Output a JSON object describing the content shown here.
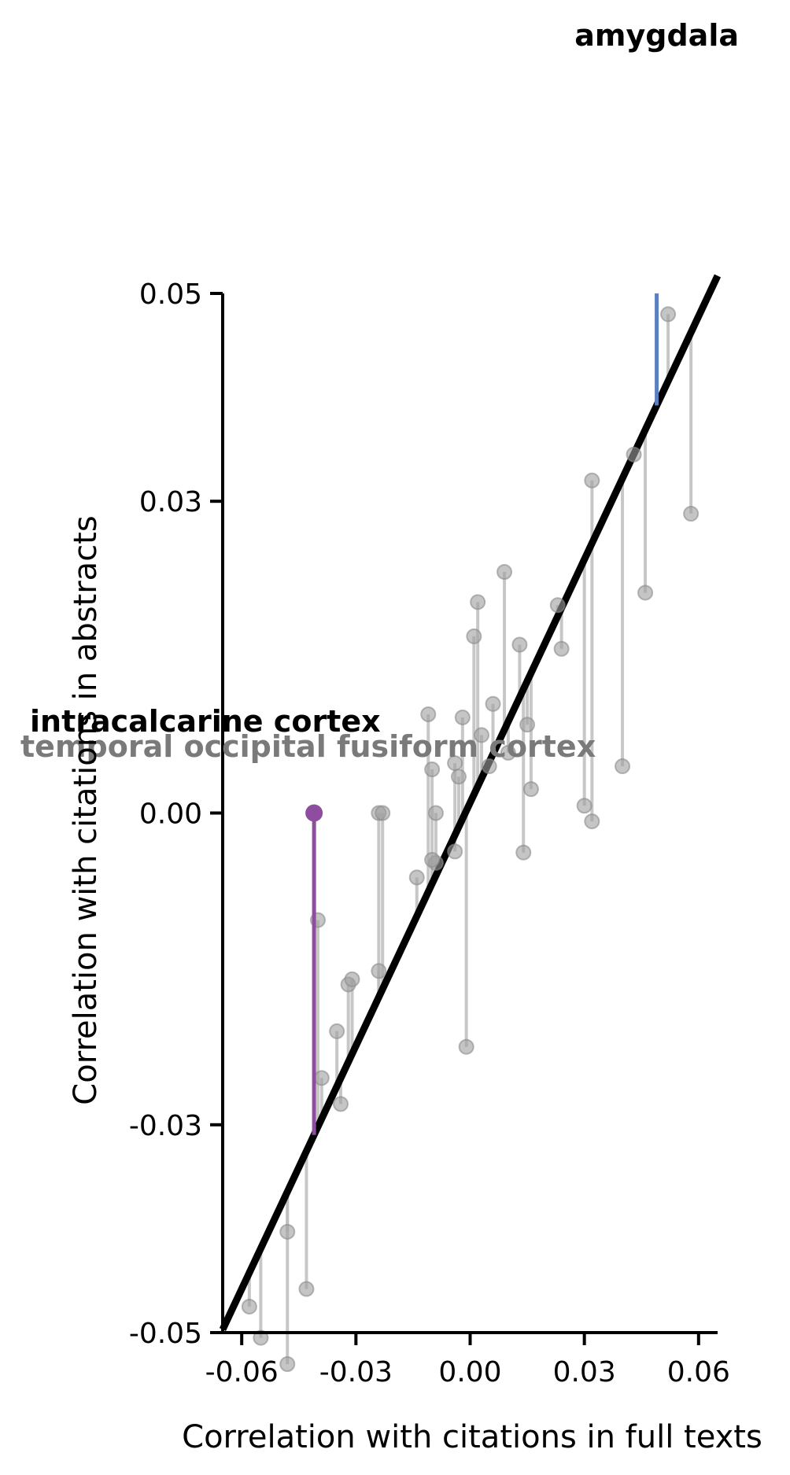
{
  "chart_data": {
    "type": "scatter",
    "title": "",
    "xlabel": "Correlation with citations in full texts",
    "ylabel": "Correlation with citations in abstracts",
    "xlim": [
      -0.065,
      0.065
    ],
    "ylim": [
      -0.05,
      0.05
    ],
    "x_ticks": [
      -0.06,
      -0.03,
      0.0,
      0.03,
      0.06
    ],
    "x_tick_labels": [
      "-0.06",
      "-0.03",
      "0.00",
      "0.03",
      "0.06"
    ],
    "y_ticks": [
      -0.05,
      -0.03,
      0.0,
      0.03,
      0.05
    ],
    "y_tick_labels": [
      "-0.05",
      "-0.03",
      "0.00",
      "0.03",
      "0.05"
    ],
    "grid": false,
    "fit_line": {
      "slope": 0.78,
      "intercept": 0.001
    },
    "colors": {
      "points": "#9e9e9e",
      "residuals": "#bdbdbd",
      "fit_line": "#000000",
      "amygdala": "#5b7fbf",
      "intracalcarine": "#8e4d9e"
    },
    "points": [
      {
        "x": -0.058,
        "y": -0.0475
      },
      {
        "x": -0.055,
        "y": -0.0505
      },
      {
        "x": -0.048,
        "y": -0.0403
      },
      {
        "x": -0.048,
        "y": -0.0575
      },
      {
        "x": -0.043,
        "y": -0.0458
      },
      {
        "x": -0.04,
        "y": -0.0103
      },
      {
        "x": -0.039,
        "y": -0.0255
      },
      {
        "x": -0.035,
        "y": -0.021
      },
      {
        "x": -0.034,
        "y": -0.028
      },
      {
        "x": -0.032,
        "y": -0.0165
      },
      {
        "x": -0.031,
        "y": -0.016
      },
      {
        "x": -0.024,
        "y": 0.0
      },
      {
        "x": -0.023,
        "y": 0.0
      },
      {
        "x": -0.024,
        "y": -0.0152
      },
      {
        "x": -0.014,
        "y": -0.0062
      },
      {
        "x": -0.011,
        "y": 0.0095
      },
      {
        "x": -0.01,
        "y": 0.0042
      },
      {
        "x": -0.009,
        "y": 0.0
      },
      {
        "x": -0.009,
        "y": -0.0048
      },
      {
        "x": -0.01,
        "y": -0.0045
      },
      {
        "x": -0.004,
        "y": -0.0037
      },
      {
        "x": -0.004,
        "y": 0.0048
      },
      {
        "x": -0.003,
        "y": 0.0035
      },
      {
        "x": -0.002,
        "y": 0.0092
      },
      {
        "x": -0.001,
        "y": -0.0225
      },
      {
        "x": 0.001,
        "y": 0.017
      },
      {
        "x": 0.002,
        "y": 0.0203
      },
      {
        "x": 0.003,
        "y": 0.0075
      },
      {
        "x": 0.005,
        "y": 0.0045
      },
      {
        "x": 0.006,
        "y": 0.0105
      },
      {
        "x": 0.009,
        "y": 0.0232
      },
      {
        "x": 0.01,
        "y": 0.0058
      },
      {
        "x": 0.013,
        "y": 0.0162
      },
      {
        "x": 0.014,
        "y": -0.0038
      },
      {
        "x": 0.015,
        "y": 0.0085
      },
      {
        "x": 0.016,
        "y": 0.0023
      },
      {
        "x": 0.023,
        "y": 0.02
      },
      {
        "x": 0.024,
        "y": 0.0158
      },
      {
        "x": 0.03,
        "y": 0.0007
      },
      {
        "x": 0.032,
        "y": 0.032
      },
      {
        "x": 0.032,
        "y": -0.0008
      },
      {
        "x": 0.04,
        "y": 0.0045
      },
      {
        "x": 0.043,
        "y": 0.0345
      },
      {
        "x": 0.046,
        "y": 0.0212
      },
      {
        "x": 0.052,
        "y": 0.048
      },
      {
        "x": 0.058,
        "y": 0.0288
      }
    ],
    "highlights": [
      {
        "label": "amygdala",
        "x": 0.049,
        "y": 0.104,
        "color": "#5b7fbf"
      },
      {
        "label": "intracalcarine cortex",
        "x": -0.041,
        "y": 0.0,
        "color": "#8e4d9e"
      }
    ],
    "annotations": [
      {
        "text": "amygdala",
        "color": "#000000"
      },
      {
        "text": "intracalcarine cortex",
        "color": "#000000"
      },
      {
        "text": "temporal occipital fusiform cortex",
        "color": "#7a7a7a"
      }
    ]
  }
}
